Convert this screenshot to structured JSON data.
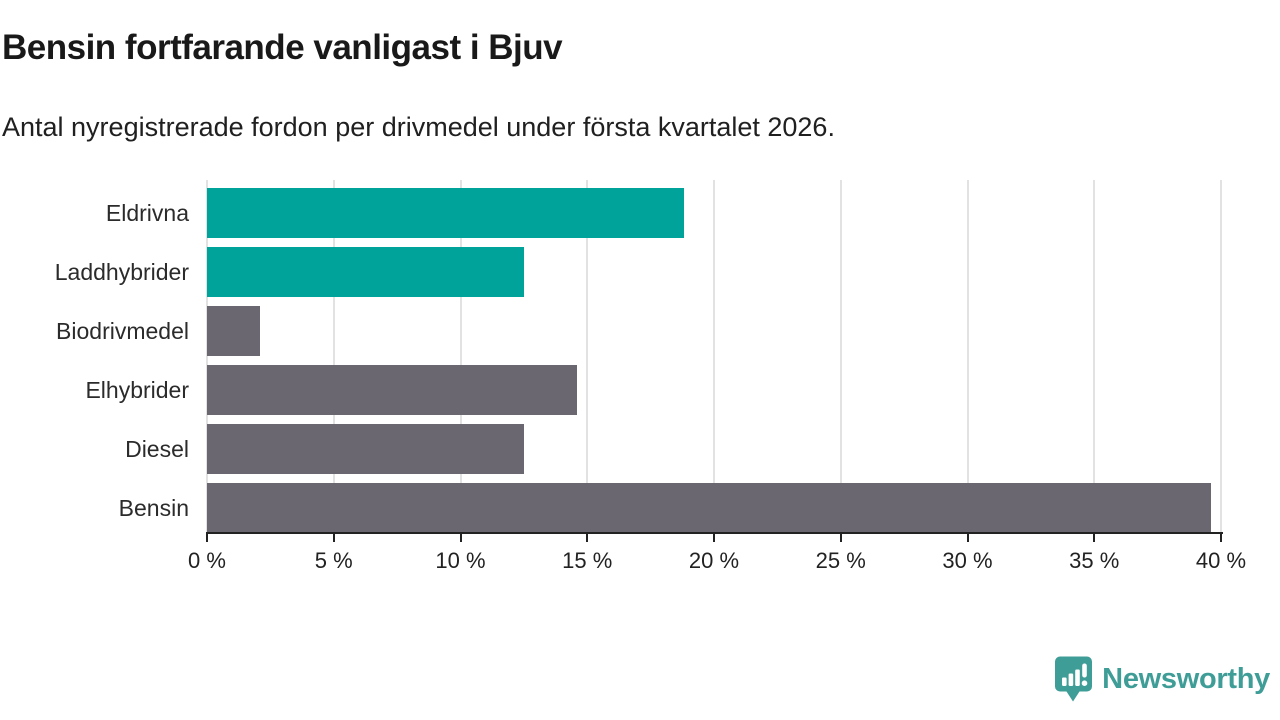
{
  "header": {
    "title": "Bensin fortfarande vanligast i Bjuv",
    "subtitle": "Antal nyregistrerade fordon per drivmedel under första kvartalet 2026."
  },
  "chart_data": {
    "type": "bar",
    "orientation": "horizontal",
    "title": "Bensin fortfarande vanligast i Bjuv",
    "subtitle": "Antal nyregistrerade fordon per drivmedel under första kvartalet 2026.",
    "categories": [
      "Eldrivna",
      "Laddhybrider",
      "Biodrivmedel",
      "Elhybrider",
      "Diesel",
      "Bensin"
    ],
    "values": [
      18.8,
      12.5,
      2.1,
      14.6,
      12.5,
      39.6
    ],
    "unit": "%",
    "bar_colors": [
      "#00A39A",
      "#00A39A",
      "#6B6770",
      "#6B6770",
      "#6B6770",
      "#6B6770"
    ],
    "xlim": [
      0,
      40
    ],
    "x_ticks": [
      0,
      5,
      10,
      15,
      20,
      25,
      30,
      35,
      40
    ],
    "x_tick_labels": [
      "0 %",
      "5 %",
      "10 %",
      "15 %",
      "20 %",
      "25 %",
      "30 %",
      "35 %",
      "40 %"
    ],
    "xlabel": "",
    "ylabel": "",
    "grid": "vertical",
    "legend": "none"
  },
  "colors": {
    "accent_teal": "#00A39A",
    "bar_gray": "#6B6770",
    "gridline": "#E2E2E2",
    "axis": "#222222",
    "label_text": "#2B2B2B",
    "logo_teal": "#3F9D97"
  },
  "footer": {
    "brand": "Newsworthy"
  },
  "icons": {
    "logo": "newsworthy-speech-bubble-barchart-icon"
  }
}
